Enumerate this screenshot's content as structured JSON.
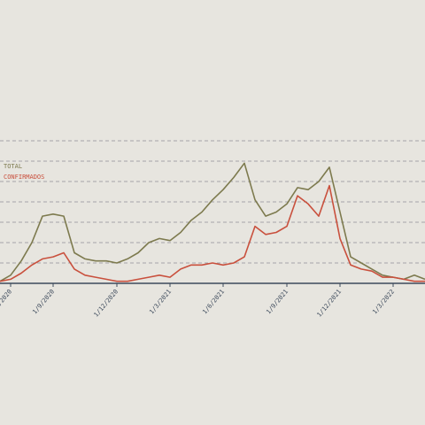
{
  "chart_data": {
    "type": "line",
    "categories": [
      null,
      "1/7/2020",
      null,
      null,
      null,
      "1/9/2020",
      null,
      null,
      null,
      null,
      null,
      "1/12/2020",
      null,
      null,
      null,
      null,
      "1/3/2021",
      null,
      null,
      null,
      null,
      "1/6/2021",
      null,
      null,
      null,
      null,
      null,
      "1/9/2021",
      null,
      null,
      null,
      null,
      "1/12/2021",
      null,
      null,
      null,
      null,
      "1/3/2022",
      null,
      null,
      null
    ],
    "series": [
      {
        "name": "TOTAL",
        "color": "#7d7a4e",
        "values": [
          0.1,
          0.4,
          1.1,
          2.0,
          3.3,
          3.4,
          3.3,
          1.5,
          1.2,
          1.1,
          1.1,
          1.0,
          1.2,
          1.5,
          2.0,
          2.2,
          2.1,
          2.5,
          3.1,
          3.5,
          4.1,
          4.6,
          5.2,
          5.9,
          4.1,
          3.3,
          3.5,
          3.9,
          4.7,
          4.6,
          5.0,
          5.7,
          3.5,
          1.3,
          1.0,
          0.7,
          0.4,
          0.3,
          0.2,
          0.4,
          0.2
        ]
      },
      {
        "name": "CONFIRMADOS",
        "color": "#c9503d",
        "values": [
          0.1,
          0.2,
          0.5,
          0.9,
          1.2,
          1.3,
          1.5,
          0.7,
          0.4,
          0.3,
          0.2,
          0.1,
          0.1,
          0.2,
          0.3,
          0.4,
          0.3,
          0.7,
          0.9,
          0.9,
          1.0,
          0.9,
          1.0,
          1.3,
          2.8,
          2.4,
          2.5,
          2.8,
          4.3,
          3.9,
          3.3,
          4.8,
          2.2,
          0.9,
          0.7,
          0.6,
          0.3,
          0.3,
          0.2,
          0.1,
          0.1
        ]
      }
    ],
    "ylim": [
      0,
      7
    ],
    "yticks": [
      1,
      2,
      3,
      4,
      5,
      6,
      7
    ],
    "grid": true
  }
}
